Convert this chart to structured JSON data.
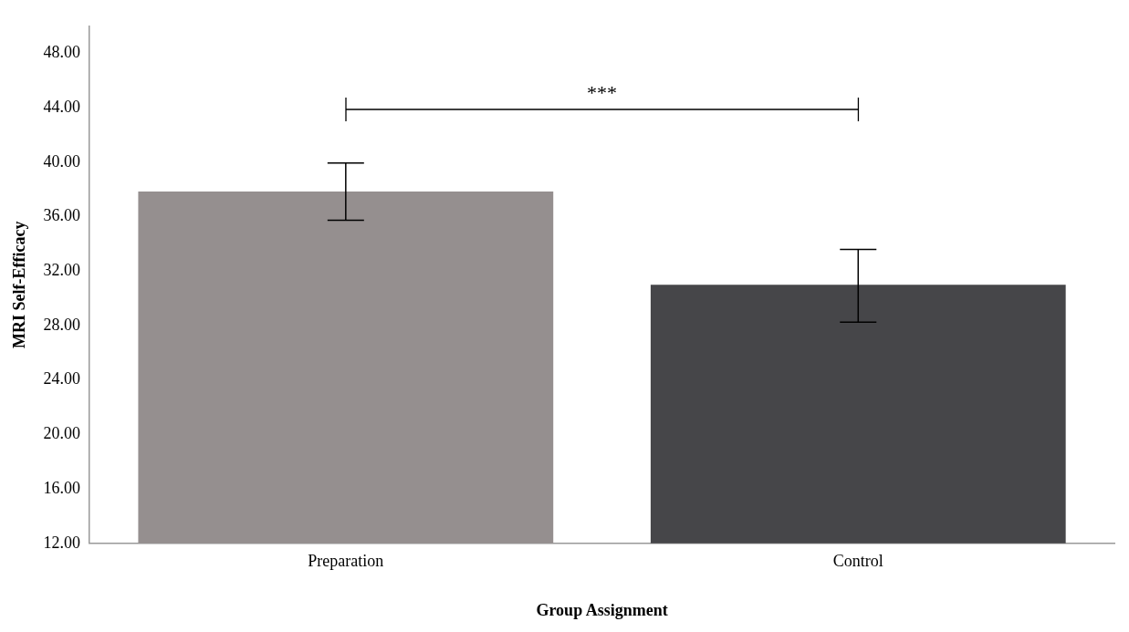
{
  "chart_data": {
    "type": "bar",
    "xlabel": "Group Assignment",
    "ylabel": "MRI Self-Efficacy",
    "categories": [
      "Preparation",
      "Control"
    ],
    "values": [
      37.85,
      31.0
    ],
    "colors": [
      "#958f8f",
      "#464649"
    ],
    "errors": [
      [
        35.75,
        39.95
      ],
      [
        28.25,
        33.6
      ]
    ],
    "ylim": [
      12,
      50
    ],
    "yticks": [
      {
        "value": 12,
        "label": "12.00"
      },
      {
        "value": 16,
        "label": "16.00"
      },
      {
        "value": 20,
        "label": "20.00"
      },
      {
        "value": 24,
        "label": "24.00"
      },
      {
        "value": 28,
        "label": "28.00"
      },
      {
        "value": 32,
        "label": "32.00"
      },
      {
        "value": 36,
        "label": "36.00"
      },
      {
        "value": 40,
        "label": "40.00"
      },
      {
        "value": 44,
        "label": "44.00"
      },
      {
        "value": 48,
        "label": "48.00"
      }
    ],
    "grid": false,
    "annotations": [
      "***"
    ]
  }
}
